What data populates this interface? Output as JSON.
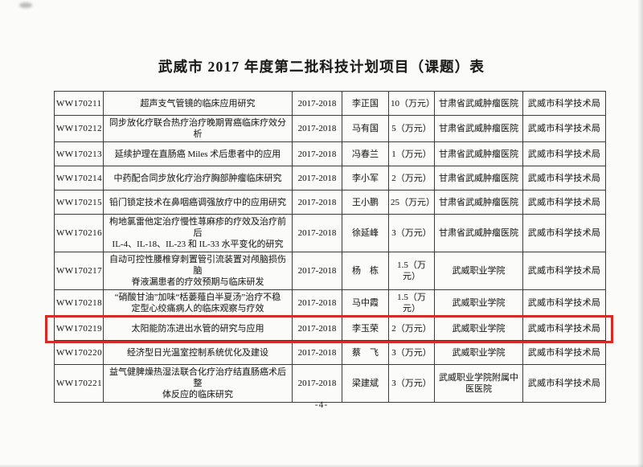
{
  "page": {
    "title": "武威市 2017 年度第二批科技计划项目（课题）表",
    "page_number": "-4-"
  },
  "colors": {
    "highlight_red": "#d32b26",
    "grid_line": "#3c3c3c",
    "paper": "#fbfbf9"
  },
  "table": {
    "rows": [
      {
        "id": "WW170211",
        "name": "超声支气管镜的临床应用研究",
        "period": "2017-2018",
        "leader": "李正国",
        "funds": "10（万元）",
        "institution": "甘肃省武威肿瘤医院",
        "department": "武威市科学技术局",
        "highlighted": false
      },
      {
        "id": "WW170212",
        "name": "同步放化疗联合热疗治疗晚期胃癌临床疗效分析",
        "period": "2017-2018",
        "leader": "马有国",
        "funds": "5（万元）",
        "institution": "甘肃省武威肿瘤医院",
        "department": "武威市科学技术局",
        "highlighted": false
      },
      {
        "id": "WW170213",
        "name": "延续护理在直肠癌 Miles 术后患者中的应用",
        "period": "2017-2018",
        "leader": "冯春兰",
        "funds": "1（万元）",
        "institution": "甘肃省武威肿瘤医院",
        "department": "武威市科学技术局",
        "highlighted": false
      },
      {
        "id": "WW170214",
        "name": "中药配合同步放化疗治疗胸部肿瘤临床研究",
        "period": "2017-2018",
        "leader": "李小军",
        "funds": "2（万元）",
        "institution": "甘肃省武威肿瘤医院",
        "department": "武威市科学技术局",
        "highlighted": false
      },
      {
        "id": "WW170215",
        "name": "铅门锁定技术在鼻咽癌调强放疗中的应用研究",
        "period": "2017-2018",
        "leader": "王小鹏",
        "funds": "25（万元）",
        "institution": "甘肃省武威肿瘤医院",
        "department": "武威市科学技术局",
        "highlighted": false
      },
      {
        "id": "WW170216",
        "name": "枸地氯雷他定治疗慢性荨麻疹的疗效及治疗前后\nIL-4、IL-18、IL-23 和 IL-33 水平变化的研究",
        "period": "2017-2018",
        "leader": "徐延峰",
        "funds": "3（万元）",
        "institution": "甘肃省武威肿瘤医院",
        "department": "武威市科学技术局",
        "highlighted": false
      },
      {
        "id": "WW170217",
        "name": "自动可控性腰椎穿刺置管引流装置对颅脑损伤脑\n脊液漏患者的疗效预期与临床研发",
        "period": "2017-2018",
        "leader": "杨　栋",
        "funds": "1.5（万\n元）",
        "institution": "武威职业学院",
        "department": "武威市科学技术局",
        "highlighted": false
      },
      {
        "id": "WW170218",
        "name": "“硝酸甘油”加味“栝蒌薤白半夏汤”治疗不稳\n定型心绞痛病人的临床观察与疗效",
        "period": "2017-2018",
        "leader": "马中霞",
        "funds": "1.5（万\n元）",
        "institution": "武威职业学院",
        "department": "武威市科学技术局",
        "highlighted": false
      },
      {
        "id": "WW170219",
        "name": "太阳能防冻进出水管的研究与应用",
        "period": "2017-2018",
        "leader": "李玉荣",
        "funds": "2（万元）",
        "institution": "武威职业学院",
        "department": "武威市科学技术局",
        "highlighted": true
      },
      {
        "id": "WW170220",
        "name": "经济型日光温室控制系统优化及建设",
        "period": "2017-2018",
        "leader": "蔡　飞",
        "funds": "3（万元）",
        "institution": "武威职业学院",
        "department": "武威市科学技术局",
        "highlighted": false
      },
      {
        "id": "WW170221",
        "name": "益气健脾燥热湿法联合化疗治疗结直肠癌术后整\n体反应的临床研究",
        "period": "2017-2018",
        "leader": "梁建斌",
        "funds": "3（万元）",
        "institution": "武威职业学院附属中\n医医院",
        "department": "武威市科学技术局",
        "highlighted": false
      }
    ]
  }
}
